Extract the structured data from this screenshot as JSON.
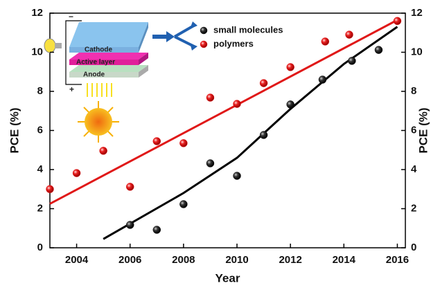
{
  "chart_data": {
    "type": "scatter",
    "x_label": "Year",
    "y_label": "PCE (%)",
    "y2_label": "PCE (%)",
    "xlim": [
      2003,
      2016.3
    ],
    "xticks": [
      2004,
      2006,
      2008,
      2010,
      2012,
      2014,
      2016
    ],
    "ylim": [
      0,
      12
    ],
    "yticks": [
      0,
      2,
      4,
      6,
      8,
      10,
      12
    ],
    "y2lim": [
      0,
      12
    ],
    "y2ticks": [
      0,
      2,
      4,
      6,
      8,
      10,
      12
    ],
    "series": [
      {
        "name": "small molecules",
        "color": "#111111",
        "x": [
          2006,
          2007,
          2008,
          2009,
          2010,
          2011,
          2012,
          2013.2,
          2014.3,
          2015.3
        ],
        "values": [
          1.17,
          0.92,
          2.23,
          4.32,
          3.68,
          5.77,
          7.33,
          8.6,
          9.56,
          10.12
        ]
      },
      {
        "name": "polymers",
        "color": "#e01818",
        "x": [
          2003,
          2004,
          2005,
          2006,
          2007,
          2008,
          2009,
          2010,
          2011,
          2012,
          2013.3,
          2014.2,
          2016
        ],
        "values": [
          3.0,
          3.82,
          4.96,
          3.12,
          5.45,
          5.35,
          7.68,
          7.36,
          8.42,
          9.24,
          10.55,
          10.9,
          11.6
        ]
      }
    ],
    "fit_lines": [
      {
        "color": "#000000",
        "x": [
          2005,
          2008,
          2010,
          2012,
          2014,
          2016
        ],
        "values": [
          0.45,
          2.8,
          4.6,
          7.1,
          9.4,
          11.3
        ]
      },
      {
        "color": "#e01818",
        "x": [
          2003,
          2016
        ],
        "values": [
          2.25,
          11.65
        ]
      }
    ],
    "inset_labels": {
      "cathode": "Cathode",
      "active": "Active layer",
      "anode": "Anode",
      "minus": "−",
      "plus": "+"
    }
  }
}
